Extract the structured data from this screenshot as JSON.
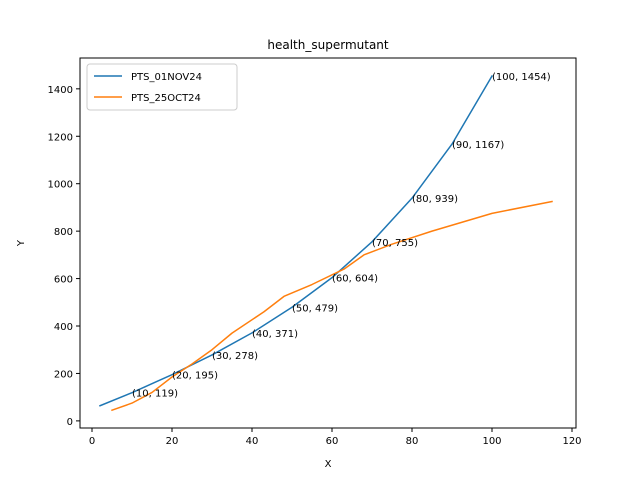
{
  "chart_data": {
    "type": "line",
    "title": "health_supermutant",
    "xlabel": "X",
    "ylabel": "Y",
    "xlim": [
      -3,
      121
    ],
    "ylim": [
      -30,
      1530
    ],
    "xticks": [
      0,
      20,
      40,
      60,
      80,
      100,
      120
    ],
    "yticks": [
      0,
      200,
      400,
      600,
      800,
      1000,
      1200,
      1400
    ],
    "legend_position": "upper-left",
    "grid": false,
    "series": [
      {
        "name": "PTS_01NOV24",
        "color": "#1f77b4",
        "x": [
          2,
          10,
          20,
          30,
          40,
          50,
          60,
          70,
          80,
          90,
          100
        ],
        "y": [
          64,
          119,
          195,
          278,
          371,
          479,
          604,
          755,
          939,
          1167,
          1454
        ]
      },
      {
        "name": "PTS_25OCT24",
        "color": "#ff7f0e",
        "x": [
          5,
          10,
          15,
          20,
          25,
          30,
          35,
          43,
          48,
          55,
          63,
          68,
          75,
          85,
          100,
          115
        ],
        "y": [
          45,
          75,
          120,
          185,
          240,
          300,
          370,
          460,
          525,
          575,
          640,
          700,
          745,
          800,
          875,
          925
        ]
      }
    ],
    "annotations": [
      {
        "x": 10,
        "y": 119,
        "text": "(10, 119)"
      },
      {
        "x": 20,
        "y": 195,
        "text": "(20, 195)"
      },
      {
        "x": 30,
        "y": 278,
        "text": "(30, 278)"
      },
      {
        "x": 40,
        "y": 371,
        "text": "(40, 371)"
      },
      {
        "x": 50,
        "y": 479,
        "text": "(50, 479)"
      },
      {
        "x": 60,
        "y": 604,
        "text": "(60, 604)"
      },
      {
        "x": 70,
        "y": 755,
        "text": "(70, 755)"
      },
      {
        "x": 80,
        "y": 939,
        "text": "(80, 939)"
      },
      {
        "x": 90,
        "y": 1167,
        "text": "(90, 1167)"
      },
      {
        "x": 100,
        "y": 1454,
        "text": "(100, 1454)"
      }
    ]
  }
}
